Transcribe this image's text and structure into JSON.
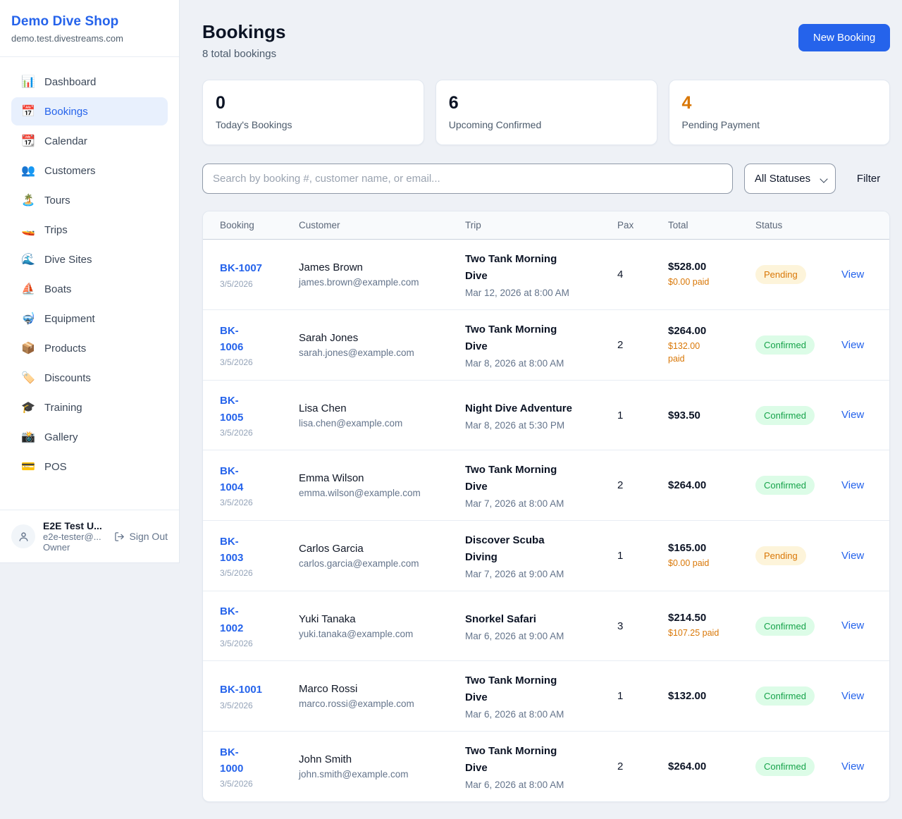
{
  "brand": {
    "name": "Demo Dive Shop",
    "domain": "demo.test.divestreams.com"
  },
  "sidebar": {
    "items": [
      {
        "icon": "📊",
        "icon_name": "bar-chart-icon",
        "label": "Dashboard",
        "active": false
      },
      {
        "icon": "📅",
        "icon_name": "calendar-icon",
        "label": "Bookings",
        "active": true
      },
      {
        "icon": "📆",
        "icon_name": "tear-off-calendar-icon",
        "label": "Calendar",
        "active": false
      },
      {
        "icon": "👥",
        "icon_name": "people-icon",
        "label": "Customers",
        "active": false
      },
      {
        "icon": "🏝️",
        "icon_name": "island-icon",
        "label": "Tours",
        "active": false
      },
      {
        "icon": "🚤",
        "icon_name": "speedboat-icon",
        "label": "Trips",
        "active": false
      },
      {
        "icon": "🌊",
        "icon_name": "wave-icon",
        "label": "Dive Sites",
        "active": false
      },
      {
        "icon": "⛵",
        "icon_name": "sailboat-icon",
        "label": "Boats",
        "active": false
      },
      {
        "icon": "🤿",
        "icon_name": "diving-mask-icon",
        "label": "Equipment",
        "active": false
      },
      {
        "icon": "📦",
        "icon_name": "package-icon",
        "label": "Products",
        "active": false
      },
      {
        "icon": "🏷️",
        "icon_name": "tag-icon",
        "label": "Discounts",
        "active": false
      },
      {
        "icon": "🎓",
        "icon_name": "graduation-cap-icon",
        "label": "Training",
        "active": false
      },
      {
        "icon": "📸",
        "icon_name": "camera-icon",
        "label": "Gallery",
        "active": false
      },
      {
        "icon": "💳",
        "icon_name": "credit-card-icon",
        "label": "POS",
        "active": false
      }
    ]
  },
  "user": {
    "name": "E2E Test U...",
    "email": "e2e-tester@...",
    "role": "Owner",
    "sign_out_label": "Sign Out"
  },
  "header": {
    "title": "Bookings",
    "subtitle": "8 total bookings",
    "new_booking_label": "New Booking"
  },
  "stats": [
    {
      "value": "0",
      "label": "Today's Bookings",
      "color": "#0b1324"
    },
    {
      "value": "6",
      "label": "Upcoming Confirmed",
      "color": "#0b1324"
    },
    {
      "value": "4",
      "label": "Pending Payment",
      "color": "#d97706"
    }
  ],
  "filters": {
    "search_placeholder": "Search by booking #, customer name, or email...",
    "status_option": "All Statuses",
    "filter_label": "Filter"
  },
  "table": {
    "columns": [
      "Booking",
      "Customer",
      "Trip",
      "Pax",
      "Total",
      "Status"
    ],
    "view_label": "View",
    "rows": [
      {
        "number": "BK-1007",
        "number_display": "BK-1007",
        "date": "3/5/2026",
        "customer_name": "James Brown",
        "customer_email": "james.brown@example.com",
        "trip_name": "Two Tank Morning Dive",
        "trip_name_display": "Two Tank Morning\nDive",
        "trip_datetime": "Mar 12, 2026 at 8:00 AM",
        "pax": "4",
        "total": "$528.00",
        "paid_display": "$0.00 paid",
        "status": "Pending",
        "status_type": "pending"
      },
      {
        "number": "BK-1006",
        "number_display": "BK-\n1006",
        "date": "3/5/2026",
        "customer_name": "Sarah Jones",
        "customer_email": "sarah.jones@example.com",
        "trip_name": "Two Tank Morning Dive",
        "trip_name_display": "Two Tank Morning\nDive",
        "trip_datetime": "Mar 8, 2026 at 8:00 AM",
        "pax": "2",
        "total": "$264.00",
        "paid_display": "$132.00\npaid",
        "status": "Confirmed",
        "status_type": "confirmed"
      },
      {
        "number": "BK-1005",
        "number_display": "BK-\n1005",
        "date": "3/5/2026",
        "customer_name": "Lisa Chen",
        "customer_email": "lisa.chen@example.com",
        "trip_name": "Night Dive Adventure",
        "trip_name_display": "Night Dive Adventure",
        "trip_datetime": "Mar 8, 2026 at 5:30 PM",
        "pax": "1",
        "total": "$93.50",
        "paid_display": "",
        "status": "Confirmed",
        "status_type": "confirmed"
      },
      {
        "number": "BK-1004",
        "number_display": "BK-\n1004",
        "date": "3/5/2026",
        "customer_name": "Emma Wilson",
        "customer_email": "emma.wilson@example.com",
        "trip_name": "Two Tank Morning Dive",
        "trip_name_display": "Two Tank Morning\nDive",
        "trip_datetime": "Mar 7, 2026 at 8:00 AM",
        "pax": "2",
        "total": "$264.00",
        "paid_display": "",
        "status": "Confirmed",
        "status_type": "confirmed"
      },
      {
        "number": "BK-1003",
        "number_display": "BK-\n1003",
        "date": "3/5/2026",
        "customer_name": "Carlos Garcia",
        "customer_email": "carlos.garcia@example.com",
        "trip_name": "Discover Scuba Diving",
        "trip_name_display": "Discover Scuba\nDiving",
        "trip_datetime": "Mar 7, 2026 at 9:00 AM",
        "pax": "1",
        "total": "$165.00",
        "paid_display": "$0.00 paid",
        "status": "Pending",
        "status_type": "pending"
      },
      {
        "number": "BK-1002",
        "number_display": "BK-\n1002",
        "date": "3/5/2026",
        "customer_name": "Yuki Tanaka",
        "customer_email": "yuki.tanaka@example.com",
        "trip_name": "Snorkel Safari",
        "trip_name_display": "Snorkel Safari",
        "trip_datetime": "Mar 6, 2026 at 9:00 AM",
        "pax": "3",
        "total": "$214.50",
        "paid_display": "$107.25 paid",
        "status": "Confirmed",
        "status_type": "confirmed"
      },
      {
        "number": "BK-1001",
        "number_display": "BK-1001",
        "date": "3/5/2026",
        "customer_name": "Marco Rossi",
        "customer_email": "marco.rossi@example.com",
        "trip_name": "Two Tank Morning Dive",
        "trip_name_display": "Two Tank Morning\nDive",
        "trip_datetime": "Mar 6, 2026 at 8:00 AM",
        "pax": "1",
        "total": "$132.00",
        "paid_display": "",
        "status": "Confirmed",
        "status_type": "confirmed"
      },
      {
        "number": "BK-1000",
        "number_display": "BK-\n1000",
        "date": "3/5/2026",
        "customer_name": "John Smith",
        "customer_email": "john.smith@example.com",
        "trip_name": "Two Tank Morning Dive",
        "trip_name_display": "Two Tank Morning\nDive",
        "trip_datetime": "Mar 6, 2026 at 8:00 AM",
        "pax": "2",
        "total": "$264.00",
        "paid_display": "",
        "status": "Confirmed",
        "status_type": "confirmed"
      }
    ]
  }
}
